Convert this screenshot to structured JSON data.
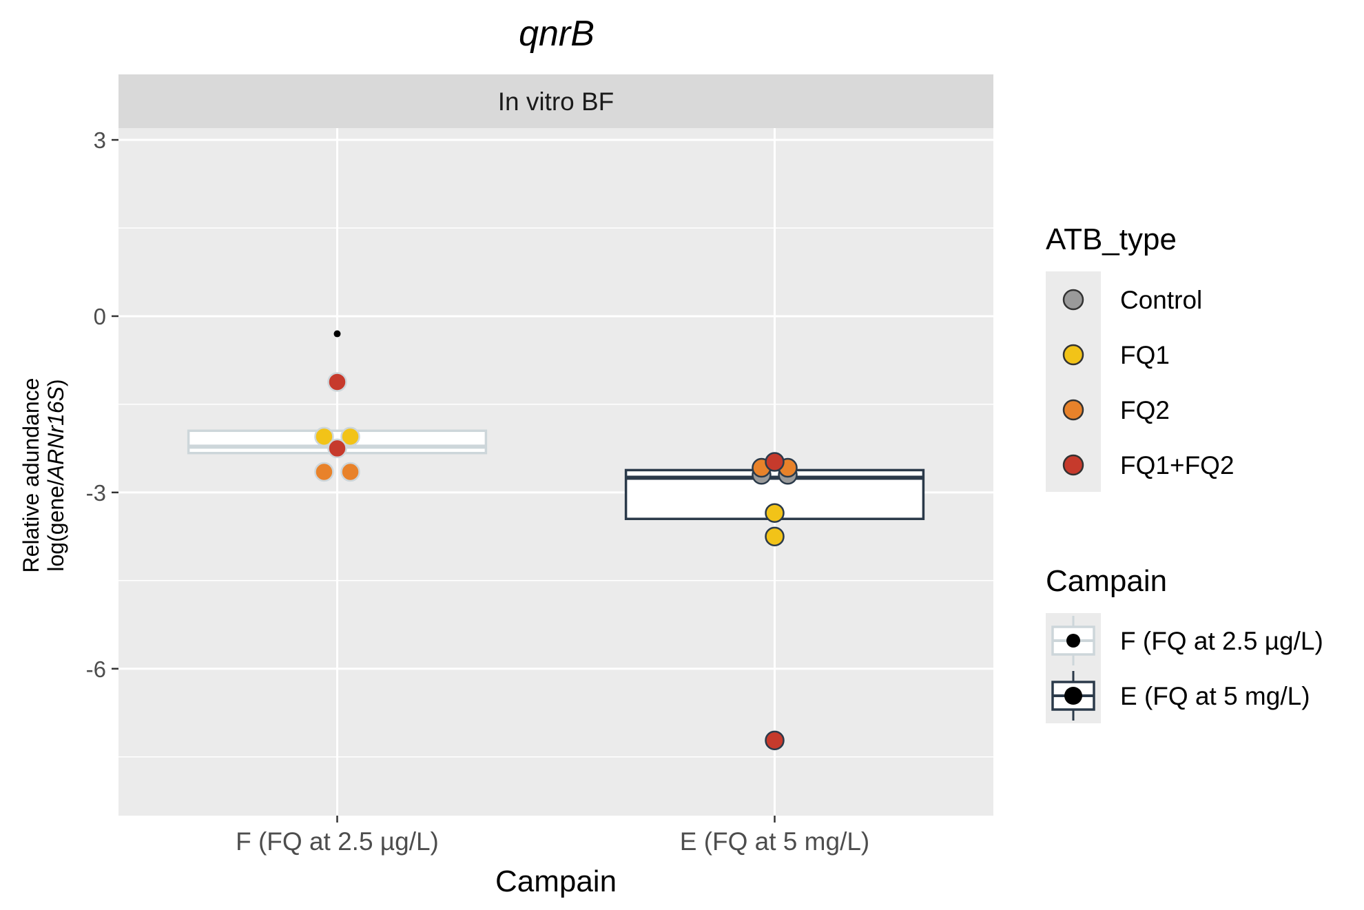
{
  "chart_data": {
    "type": "box",
    "title": "qnrB",
    "facet": "In vitro BF",
    "xlabel": "Campain",
    "ylabel_line1": "Relative adundance",
    "ylabel_line2_prefix": "log(gene/",
    "ylabel_line2_italic": "ARNr16S",
    "ylabel_line2_suffix": ")",
    "categories": [
      "F (FQ at 2.5 µg/L)",
      "E (FQ at 5 mg/L)"
    ],
    "ylim": [
      -8.5,
      3.2
    ],
    "yticks": [
      3,
      0,
      -3,
      -6
    ],
    "yticklabels": [
      "3",
      "0",
      "-3",
      "-6"
    ],
    "grid": true,
    "boxes": [
      {
        "campain": "F (FQ at 2.5 µg/L)",
        "q1": -2.33,
        "median": -2.22,
        "q3": -1.95,
        "whisker_low": -2.33,
        "whisker_high": -1.95,
        "outliers": [
          -0.3
        ],
        "color": "#cdd6da"
      },
      {
        "campain": "E (FQ at 5 mg/L)",
        "q1": -3.45,
        "median": -2.75,
        "q3": -2.62,
        "whisker_low": -3.45,
        "whisker_high": -2.62,
        "outliers": [],
        "color": "#2b3a4a"
      }
    ],
    "points": [
      {
        "campain": "F (FQ at 2.5 µg/L)",
        "atb": "FQ1+FQ2",
        "y": -1.12,
        "offset": 0
      },
      {
        "campain": "F (FQ at 2.5 µg/L)",
        "atb": "FQ1",
        "y": -2.05,
        "offset": -0.12
      },
      {
        "campain": "F (FQ at 2.5 µg/L)",
        "atb": "FQ1",
        "y": -2.05,
        "offset": 0.12
      },
      {
        "campain": "F (FQ at 2.5 µg/L)",
        "atb": "FQ1+FQ2",
        "y": -2.25,
        "offset": 0
      },
      {
        "campain": "F (FQ at 2.5 µg/L)",
        "atb": "FQ2",
        "y": -2.65,
        "offset": -0.12
      },
      {
        "campain": "F (FQ at 2.5 µg/L)",
        "atb": "FQ2",
        "y": -2.65,
        "offset": 0.12
      },
      {
        "campain": "E (FQ at 5 mg/L)",
        "atb": "Control",
        "y": -2.7,
        "offset": -0.12
      },
      {
        "campain": "E (FQ at 5 mg/L)",
        "atb": "Control",
        "y": -2.7,
        "offset": 0.12
      },
      {
        "campain": "E (FQ at 5 mg/L)",
        "atb": "FQ2",
        "y": -2.58,
        "offset": -0.12
      },
      {
        "campain": "E (FQ at 5 mg/L)",
        "atb": "FQ2",
        "y": -2.58,
        "offset": 0.12
      },
      {
        "campain": "E (FQ at 5 mg/L)",
        "atb": "FQ1+FQ2",
        "y": -2.48,
        "offset": 0
      },
      {
        "campain": "E (FQ at 5 mg/L)",
        "atb": "FQ1",
        "y": -3.35,
        "offset": 0
      },
      {
        "campain": "E (FQ at 5 mg/L)",
        "atb": "FQ1",
        "y": -3.75,
        "offset": 0
      },
      {
        "campain": "E (FQ at 5 mg/L)",
        "atb": "FQ1+FQ2",
        "y": -7.22,
        "offset": 0
      }
    ],
    "atb_colors": {
      "Control": "#9a9a9a",
      "FQ1": "#f2c318",
      "FQ2": "#e8822a",
      "FQ1+FQ2": "#c63a2c"
    },
    "legend_atb": {
      "title": "ATB_type",
      "items": [
        {
          "label": "Control",
          "color": "#9a9a9a"
        },
        {
          "label": "FQ1",
          "color": "#f2c318"
        },
        {
          "label": "FQ2",
          "color": "#e8822a"
        },
        {
          "label": "FQ1+FQ2",
          "color": "#c63a2c"
        }
      ]
    },
    "legend_campain": {
      "title": "Campain",
      "items": [
        {
          "label": "F (FQ at 2.5 µg/L)",
          "color": "#cdd6da"
        },
        {
          "label": "E (FQ at 5 mg/L)",
          "color": "#2b3a4a"
        }
      ]
    },
    "legend_placement": "right"
  }
}
